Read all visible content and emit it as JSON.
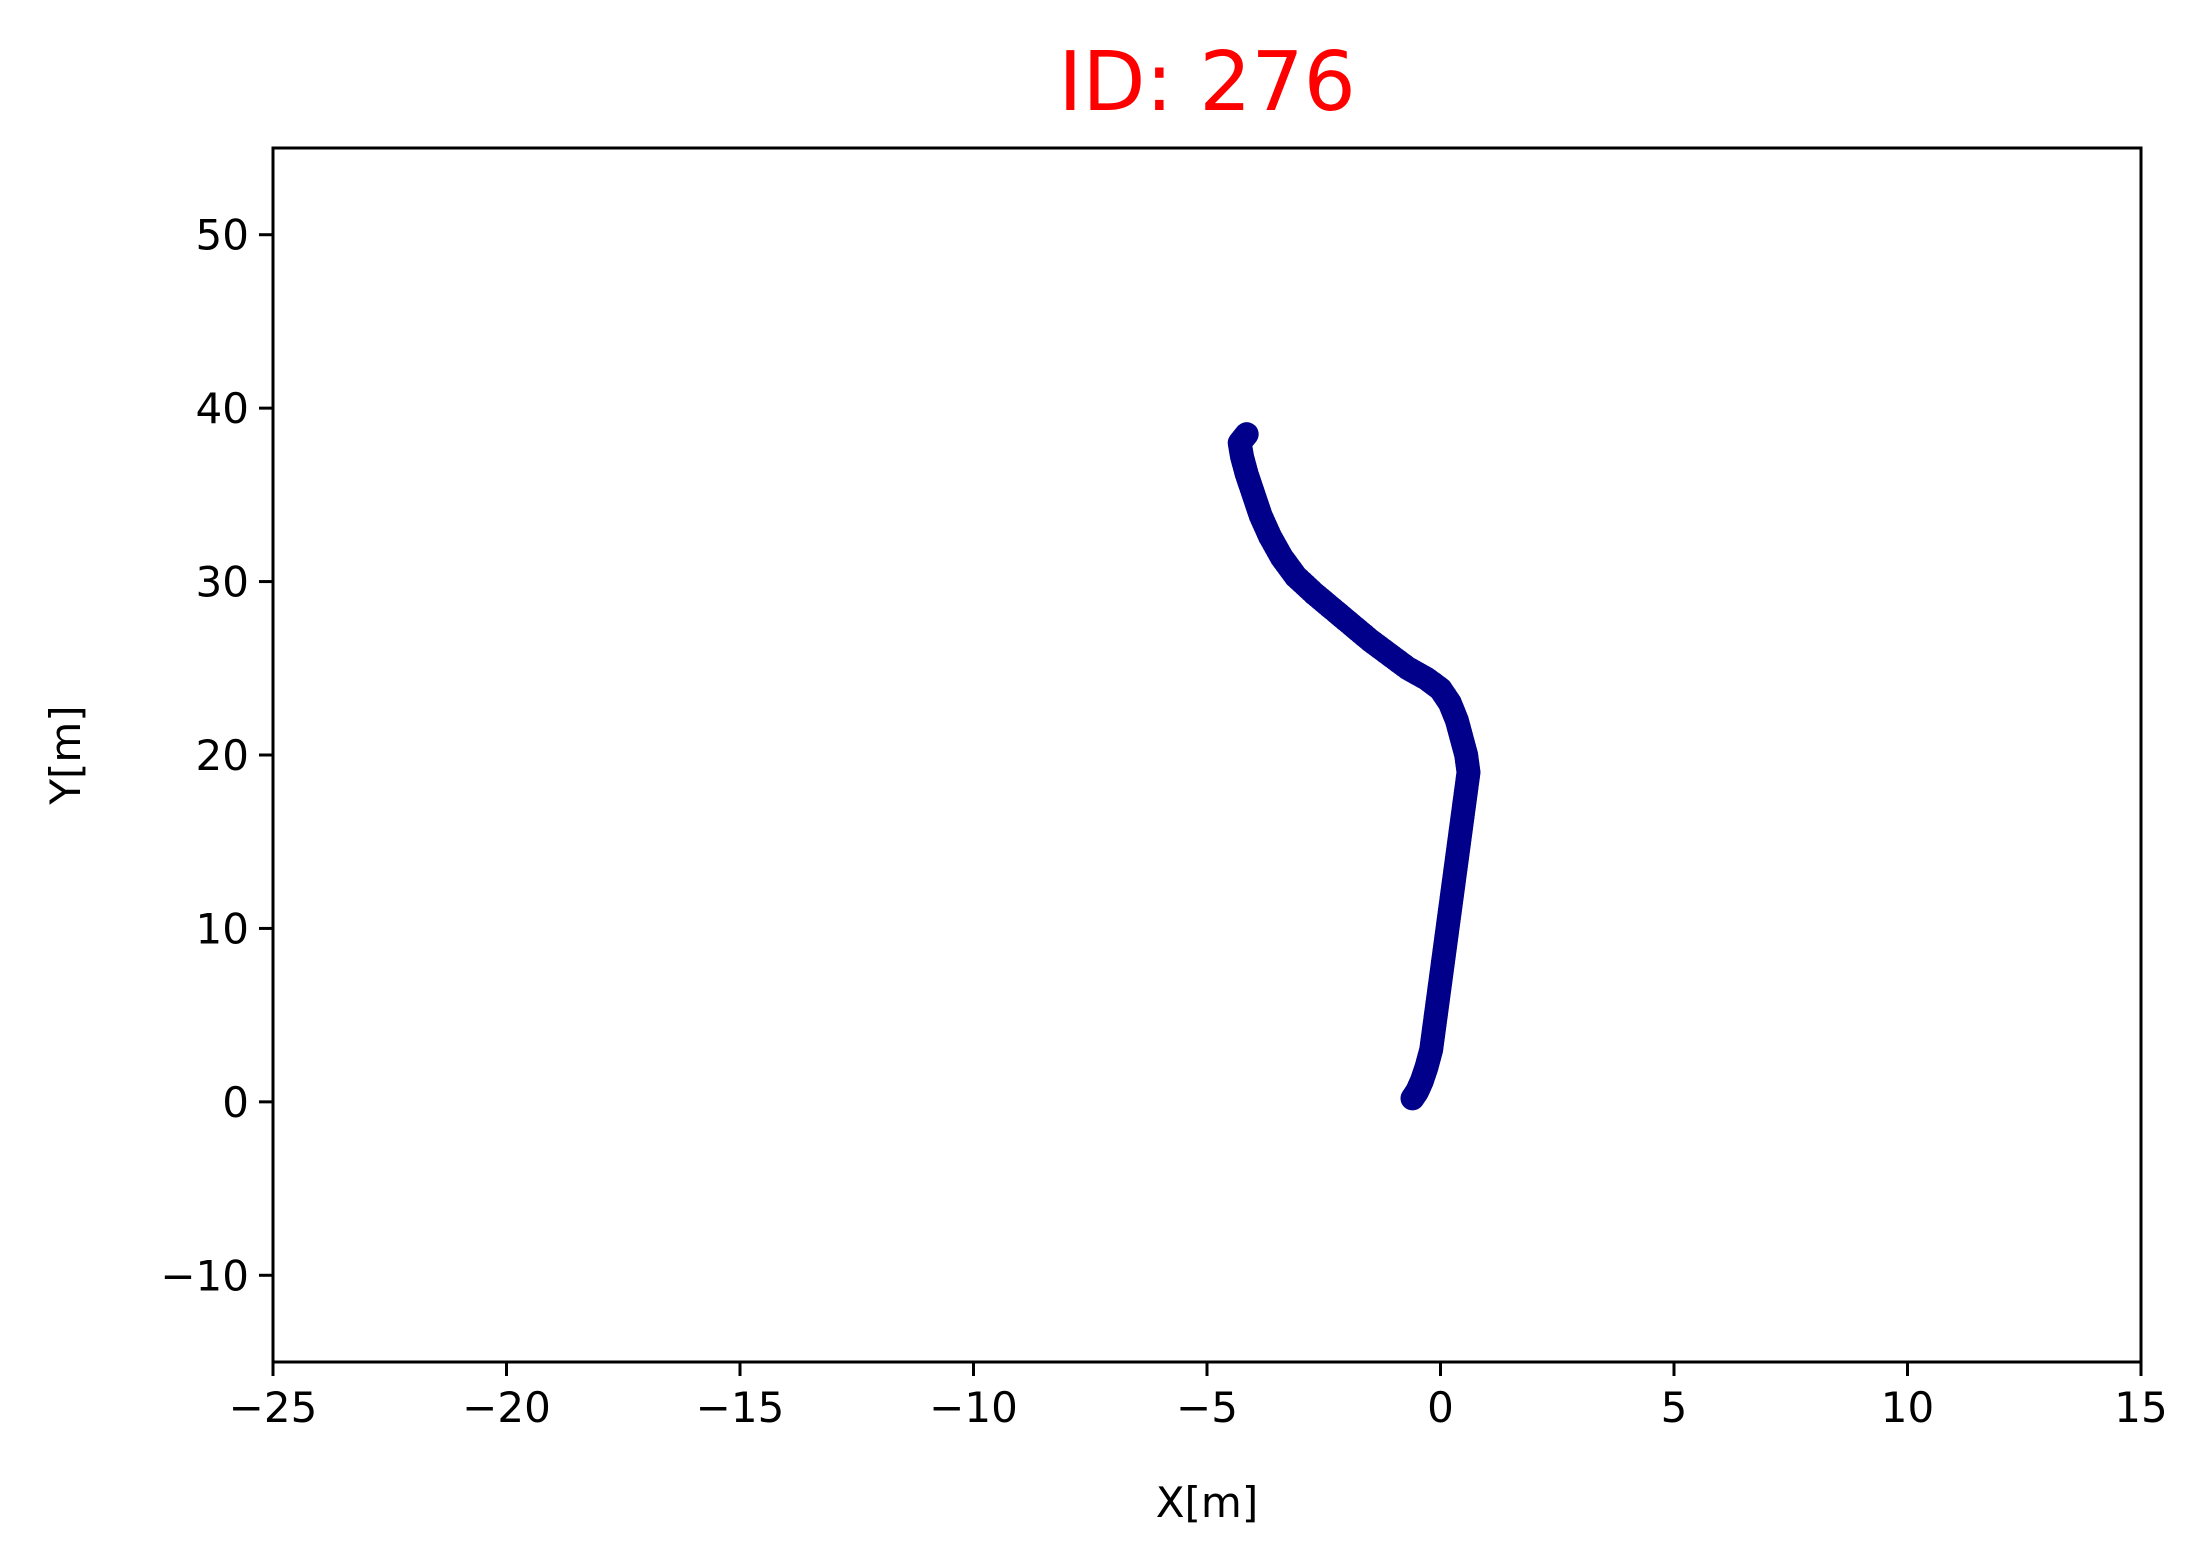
{
  "chart_data": {
    "type": "scatter",
    "title": "ID: 276",
    "title_color": "#ff0000",
    "xlabel": "X[m]",
    "ylabel": "Y[m]",
    "xlim": [
      -25,
      15
    ],
    "ylim": [
      -15,
      55
    ],
    "x_ticks": [
      -25,
      -20,
      -15,
      -10,
      -5,
      0,
      5,
      10,
      15
    ],
    "x_tick_labels": [
      "−25",
      "−20",
      "−15",
      "−10",
      "−5",
      "0",
      "5",
      "10",
      "15"
    ],
    "y_ticks": [
      -10,
      0,
      10,
      20,
      30,
      40,
      50
    ],
    "y_tick_labels": [
      "−10",
      "0",
      "10",
      "20",
      "30",
      "40",
      "50"
    ],
    "grid": false,
    "series": [
      {
        "color": "#00008b",
        "points": [
          [
            -0.6,
            0.2
          ],
          [
            -0.5,
            0.6
          ],
          [
            -0.4,
            1.2
          ],
          [
            -0.3,
            2.0
          ],
          [
            -0.2,
            3.0
          ],
          [
            -0.15,
            4.0
          ],
          [
            -0.1,
            5.0
          ],
          [
            -0.05,
            6.0
          ],
          [
            0.0,
            7.0
          ],
          [
            0.05,
            8.0
          ],
          [
            0.1,
            9.0
          ],
          [
            0.15,
            10.0
          ],
          [
            0.2,
            11.0
          ],
          [
            0.25,
            12.0
          ],
          [
            0.3,
            13.0
          ],
          [
            0.35,
            14.0
          ],
          [
            0.4,
            15.0
          ],
          [
            0.45,
            16.0
          ],
          [
            0.5,
            17.0
          ],
          [
            0.55,
            18.0
          ],
          [
            0.6,
            19.0
          ],
          [
            0.55,
            20.0
          ],
          [
            0.45,
            21.0
          ],
          [
            0.35,
            22.0
          ],
          [
            0.2,
            23.0
          ],
          [
            0.0,
            23.8
          ],
          [
            -0.3,
            24.4
          ],
          [
            -0.7,
            25.0
          ],
          [
            -1.1,
            25.8
          ],
          [
            -1.5,
            26.6
          ],
          [
            -1.9,
            27.5
          ],
          [
            -2.3,
            28.4
          ],
          [
            -2.7,
            29.3
          ],
          [
            -3.1,
            30.3
          ],
          [
            -3.4,
            31.4
          ],
          [
            -3.65,
            32.6
          ],
          [
            -3.85,
            33.8
          ],
          [
            -4.0,
            35.0
          ],
          [
            -4.15,
            36.2
          ],
          [
            -4.25,
            37.2
          ],
          [
            -4.3,
            38.0
          ],
          [
            -4.15,
            38.5
          ]
        ]
      }
    ]
  }
}
